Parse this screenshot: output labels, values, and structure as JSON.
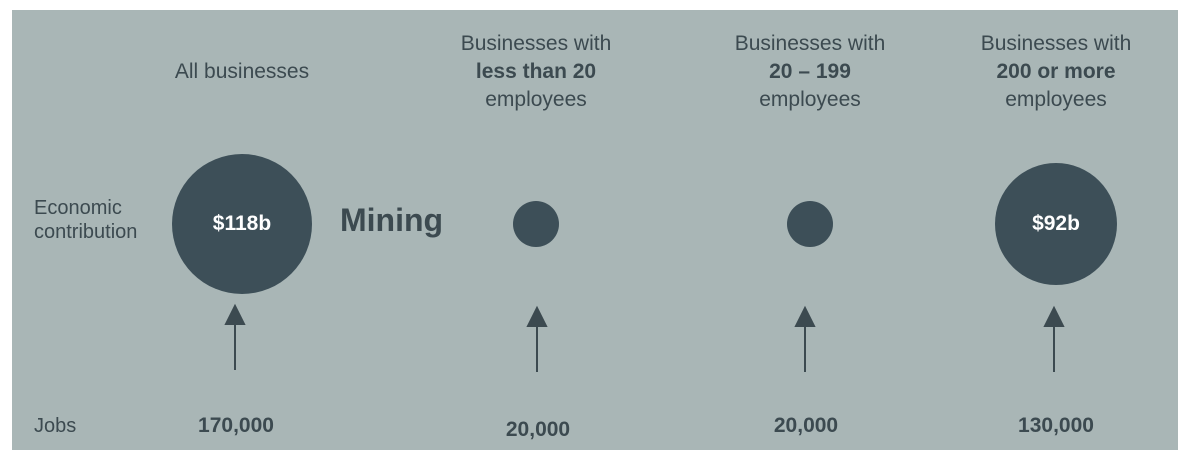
{
  "row_labels": {
    "economic": "Economic contribution",
    "jobs": "Jobs"
  },
  "sector": "Mining",
  "columns": [
    {
      "header": "All businesses",
      "value": "$118b",
      "jobs": "170,000"
    },
    {
      "header": {
        "line1": "Businesses with",
        "bold": "less than 20",
        "line3": "employees"
      },
      "jobs": "20,000"
    },
    {
      "header": {
        "line1": "Businesses with",
        "bold": "20 – 199",
        "line3": "employees"
      },
      "jobs": "20,000"
    },
    {
      "header": {
        "line1": "Businesses with",
        "bold": "200 or more",
        "line3": "employees"
      },
      "value": "$92b",
      "jobs": "130,000"
    }
  ]
}
